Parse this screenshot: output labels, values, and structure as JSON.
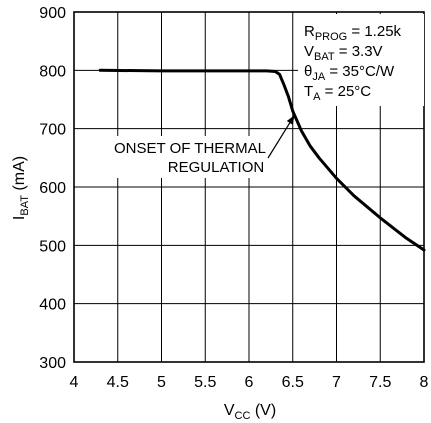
{
  "chart_data": {
    "type": "line",
    "x_axis": {
      "label_main": "V",
      "label_sub": "CC",
      "label_unit": " (V)",
      "range": [
        4,
        8
      ],
      "ticks": [
        4,
        4.5,
        5,
        5.5,
        6,
        6.5,
        7,
        7.5,
        8
      ],
      "tick_labels": [
        "4",
        "4.5",
        "5",
        "5.5",
        "6",
        "6.5",
        "7",
        "7.5",
        "8"
      ]
    },
    "y_axis": {
      "label_main": "I",
      "label_sub": "BAT",
      "label_unit": " (mA)",
      "range": [
        300,
        900
      ],
      "ticks": [
        300,
        400,
        500,
        600,
        700,
        800,
        900
      ],
      "tick_labels": [
        "300",
        "400",
        "500",
        "600",
        "700",
        "800",
        "900"
      ]
    },
    "grid": true,
    "series": [
      {
        "x": [
          4.3,
          5.0,
          5.5,
          6.0,
          6.2,
          6.3,
          6.35,
          6.4,
          6.45,
          6.5,
          6.6,
          6.7,
          6.8,
          7.0,
          7.2,
          7.5,
          7.8,
          8.0
        ],
        "y": [
          800,
          799,
          799,
          799,
          799,
          798,
          793,
          775,
          755,
          730,
          696,
          670,
          650,
          615,
          585,
          547,
          512,
          492
        ]
      }
    ],
    "annotation": {
      "line1": "ONSET OF THERMAL",
      "line2": "REGULATION",
      "arrow_to": [
        6.52,
        723
      ]
    },
    "conditions": [
      {
        "main": "R",
        "sub": "PROG",
        "rest": " = 1.25k"
      },
      {
        "main": "V",
        "sub": "BAT",
        "rest": " = 3.3V"
      },
      {
        "main": "θ",
        "sub": "JA",
        "rest": " = 35°C/W"
      },
      {
        "main": "T",
        "sub": "A",
        "rest": " = 25°C"
      }
    ]
  }
}
